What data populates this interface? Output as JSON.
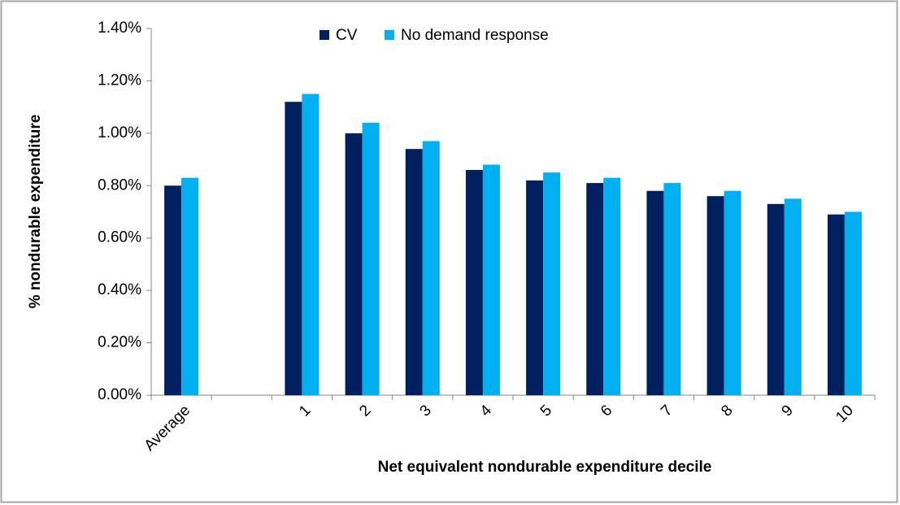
{
  "chart_data": {
    "type": "bar",
    "categories": [
      "Average",
      null,
      "1",
      "2",
      "3",
      "4",
      "5",
      "6",
      "7",
      "8",
      "9",
      "10"
    ],
    "series": [
      {
        "name": "CV",
        "color": "#002060",
        "values": [
          0.8,
          null,
          1.12,
          1.0,
          0.94,
          0.86,
          0.82,
          0.81,
          0.78,
          0.76,
          0.73,
          0.69
        ]
      },
      {
        "name": "No demand response",
        "color": "#00b0f0",
        "values": [
          0.83,
          null,
          1.15,
          1.04,
          0.97,
          0.88,
          0.85,
          0.83,
          0.81,
          0.78,
          0.75,
          0.7
        ]
      }
    ],
    "ylim": [
      0,
      1.4
    ],
    "yticks": [
      {
        "value": 0,
        "label": "0.00%"
      },
      {
        "value": 0.2,
        "label": "0.20%"
      },
      {
        "value": 0.4,
        "label": "0.40%"
      },
      {
        "value": 0.6,
        "label": "0.60%"
      },
      {
        "value": 0.8,
        "label": "0.80%"
      },
      {
        "value": 1.0,
        "label": "1.00%"
      },
      {
        "value": 1.2,
        "label": "1.20%"
      },
      {
        "value": 1.4,
        "label": "1.40%"
      }
    ],
    "xlabel": "Net equivalent nondurable expenditure decile",
    "ylabel": "% nondurable expenditure",
    "grid": false
  }
}
